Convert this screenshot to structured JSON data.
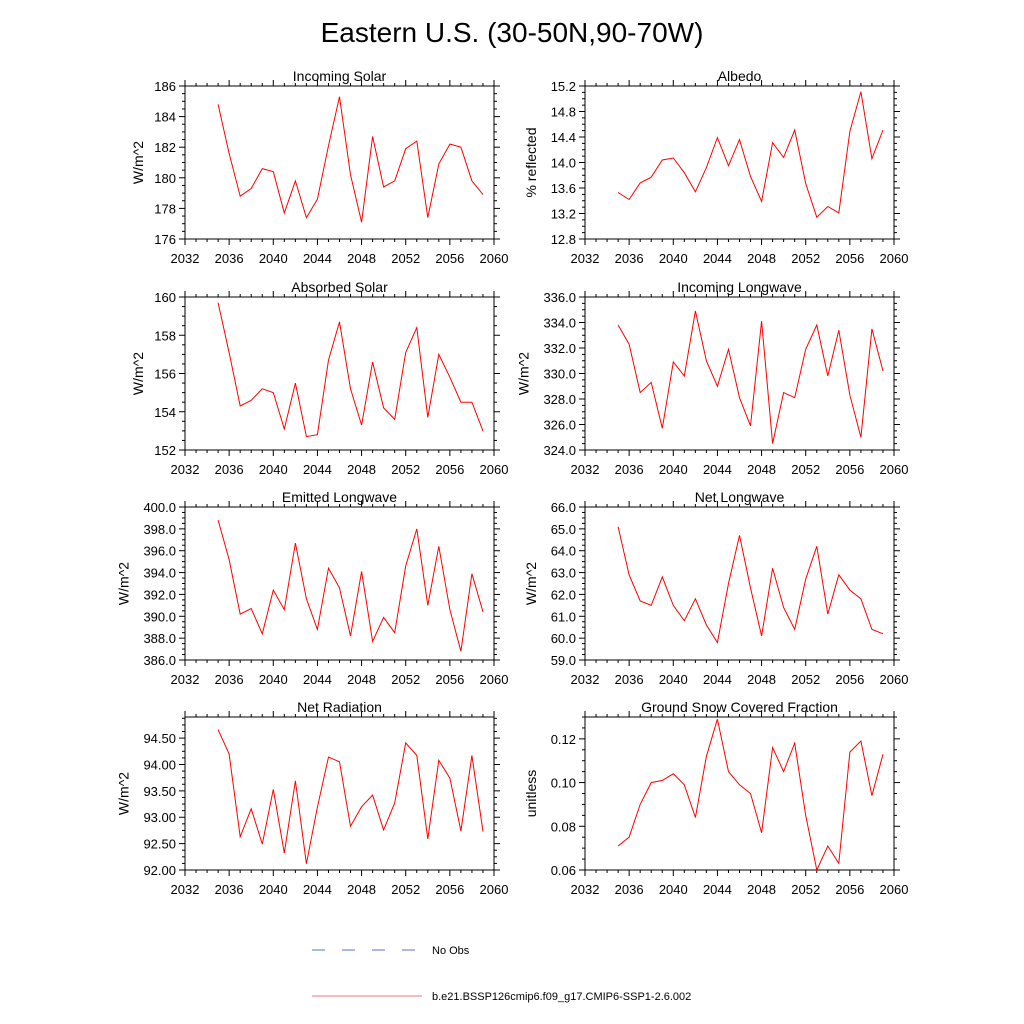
{
  "figure": {
    "title": "Eastern U.S. (30-50N,90-70W)",
    "legend": [
      {
        "label": "No Obs",
        "color": "#5b6fbf",
        "style": "dashed"
      },
      {
        "label": "b.e21.BSSP126cmip6.f09_g17.CMIP6-SSP1-2.6.002",
        "color": "#e8777a",
        "style": "solid"
      }
    ]
  },
  "chart_data": [
    {
      "type": "line",
      "title": "Incoming Solar",
      "ylabel": "W/m^2",
      "xlim": [
        2032,
        2060
      ],
      "ylim": [
        176,
        186
      ],
      "xticks": [
        "2032",
        "2036",
        "2040",
        "2044",
        "2048",
        "2052",
        "2056",
        "2060"
      ],
      "yticks": [
        "176",
        "178",
        "180",
        "182",
        "184",
        "186"
      ],
      "line_color": "#ff0000",
      "x": [
        2035,
        2036,
        2037,
        2038,
        2039,
        2040,
        2041,
        2042,
        2043,
        2044,
        2045,
        2046,
        2047,
        2048,
        2049,
        2050,
        2051,
        2052,
        2053,
        2054,
        2055,
        2056,
        2057,
        2058,
        2059
      ],
      "y": [
        184.8,
        181.6,
        178.8,
        179.3,
        180.6,
        180.4,
        177.7,
        179.8,
        177.4,
        178.6,
        182.1,
        185.3,
        180.2,
        177.1,
        182.7,
        179.4,
        179.8,
        181.9,
        182.4,
        177.4,
        180.9,
        182.2,
        182.0,
        179.8,
        178.9
      ]
    },
    {
      "type": "line",
      "title": "Albedo",
      "ylabel": "% reflected",
      "xlim": [
        2032,
        2060
      ],
      "ylim": [
        12.8,
        15.2
      ],
      "xticks": [
        "2032",
        "2036",
        "2040",
        "2044",
        "2048",
        "2052",
        "2056",
        "2060"
      ],
      "yticks": [
        "12.8",
        "13.2",
        "13.6",
        "14.0",
        "14.4",
        "14.8",
        "15.2"
      ],
      "line_color": "#ff0000",
      "x": [
        2035,
        2036,
        2037,
        2038,
        2039,
        2040,
        2041,
        2042,
        2043,
        2044,
        2045,
        2046,
        2047,
        2048,
        2049,
        2050,
        2051,
        2052,
        2053,
        2054,
        2055,
        2056,
        2057,
        2058,
        2059
      ],
      "y": [
        13.53,
        13.42,
        13.68,
        13.77,
        14.04,
        14.07,
        13.84,
        13.54,
        13.92,
        14.39,
        13.95,
        14.36,
        13.78,
        13.39,
        14.31,
        14.08,
        14.51,
        13.67,
        13.14,
        13.31,
        13.21,
        14.49,
        15.11,
        14.06,
        14.51
      ]
    },
    {
      "type": "line",
      "title": "Absorbed Solar",
      "ylabel": "W/m^2",
      "xlim": [
        2032,
        2060
      ],
      "ylim": [
        152,
        160
      ],
      "xticks": [
        "2032",
        "2036",
        "2040",
        "2044",
        "2048",
        "2052",
        "2056",
        "2060"
      ],
      "yticks": [
        "152",
        "154",
        "156",
        "158",
        "160"
      ],
      "line_color": "#ff0000",
      "x": [
        2035,
        2036,
        2037,
        2038,
        2039,
        2040,
        2041,
        2042,
        2043,
        2044,
        2045,
        2046,
        2047,
        2048,
        2049,
        2050,
        2051,
        2052,
        2053,
        2054,
        2055,
        2056,
        2057,
        2058,
        2059
      ],
      "y": [
        159.7,
        157.1,
        154.3,
        154.6,
        155.2,
        155.0,
        153.1,
        155.5,
        152.7,
        152.8,
        156.7,
        158.7,
        155.2,
        153.3,
        156.6,
        154.2,
        153.6,
        157.1,
        158.4,
        153.7,
        157.0,
        155.8,
        154.5,
        154.5,
        153.0
      ]
    },
    {
      "type": "line",
      "title": "Incoming Longwave",
      "ylabel": "W/m^2",
      "xlim": [
        2032,
        2060
      ],
      "ylim": [
        324,
        336
      ],
      "xticks": [
        "2032",
        "2036",
        "2040",
        "2044",
        "2048",
        "2052",
        "2056",
        "2060"
      ],
      "yticks": [
        "324.0",
        "326.0",
        "328.0",
        "330.0",
        "332.0",
        "334.0",
        "336.0"
      ],
      "line_color": "#ff0000",
      "x": [
        2035,
        2036,
        2037,
        2038,
        2039,
        2040,
        2041,
        2042,
        2043,
        2044,
        2045,
        2046,
        2047,
        2048,
        2049,
        2050,
        2051,
        2052,
        2053,
        2054,
        2055,
        2056,
        2057,
        2058,
        2059
      ],
      "y": [
        333.8,
        332.3,
        328.5,
        329.3,
        325.7,
        330.9,
        329.8,
        334.9,
        331.0,
        329.0,
        331.9,
        328.1,
        325.9,
        334.1,
        324.5,
        328.5,
        328.1,
        331.9,
        333.8,
        329.8,
        333.4,
        328.3,
        325.0,
        333.5,
        330.2
      ]
    },
    {
      "type": "line",
      "title": "Emitted Longwave",
      "ylabel": "W/m^2",
      "xlim": [
        2032,
        2060
      ],
      "ylim": [
        386,
        400
      ],
      "xticks": [
        "2032",
        "2036",
        "2040",
        "2044",
        "2048",
        "2052",
        "2056",
        "2060"
      ],
      "yticks": [
        "386.0",
        "388.0",
        "390.0",
        "392.0",
        "394.0",
        "396.0",
        "398.0",
        "400.0"
      ],
      "line_color": "#ff0000",
      "x": [
        2035,
        2036,
        2037,
        2038,
        2039,
        2040,
        2041,
        2042,
        2043,
        2044,
        2045,
        2046,
        2047,
        2048,
        2049,
        2050,
        2051,
        2052,
        2053,
        2054,
        2055,
        2056,
        2057,
        2058,
        2059
      ],
      "y": [
        398.8,
        395.2,
        390.2,
        390.7,
        388.4,
        392.4,
        390.6,
        396.7,
        391.6,
        388.8,
        394.4,
        392.6,
        388.2,
        394.1,
        387.7,
        389.9,
        388.5,
        394.6,
        398.0,
        391.0,
        396.4,
        390.6,
        386.8,
        393.9,
        390.4
      ]
    },
    {
      "type": "line",
      "title": "Net Longwave",
      "ylabel": "W/m^2",
      "xlim": [
        2032,
        2060
      ],
      "ylim": [
        59,
        66
      ],
      "xticks": [
        "2032",
        "2036",
        "2040",
        "2044",
        "2048",
        "2052",
        "2056",
        "2060"
      ],
      "yticks": [
        "59.0",
        "60.0",
        "61.0",
        "62.0",
        "63.0",
        "64.0",
        "65.0",
        "66.0"
      ],
      "line_color": "#ff0000",
      "x": [
        2035,
        2036,
        2037,
        2038,
        2039,
        2040,
        2041,
        2042,
        2043,
        2044,
        2045,
        2046,
        2047,
        2048,
        2049,
        2050,
        2051,
        2052,
        2053,
        2054,
        2055,
        2056,
        2057,
        2058,
        2059
      ],
      "y": [
        65.1,
        62.9,
        61.7,
        61.5,
        62.8,
        61.5,
        60.8,
        61.8,
        60.6,
        59.8,
        62.5,
        64.7,
        62.3,
        60.1,
        63.2,
        61.4,
        60.4,
        62.7,
        64.2,
        61.1,
        62.9,
        62.2,
        61.8,
        60.4,
        60.2
      ]
    },
    {
      "type": "line",
      "title": "Net Radiation",
      "ylabel": "W/m^2",
      "xlim": [
        2032,
        2060
      ],
      "ylim": [
        92,
        94.9
      ],
      "xticks": [
        "2032",
        "2036",
        "2040",
        "2044",
        "2048",
        "2052",
        "2056",
        "2060"
      ],
      "yticks": [
        "92.00",
        "92.50",
        "93.00",
        "93.50",
        "94.00",
        "94.50"
      ],
      "line_color": "#ff0000",
      "x": [
        2035,
        2036,
        2037,
        2038,
        2039,
        2040,
        2041,
        2042,
        2043,
        2044,
        2045,
        2046,
        2047,
        2048,
        2049,
        2050,
        2051,
        2052,
        2053,
        2054,
        2055,
        2056,
        2057,
        2058,
        2059
      ],
      "y": [
        94.66,
        94.2,
        92.63,
        93.16,
        92.49,
        93.53,
        92.32,
        93.69,
        92.12,
        93.19,
        94.14,
        94.05,
        92.83,
        93.2,
        93.42,
        92.76,
        93.27,
        94.41,
        94.17,
        92.59,
        94.08,
        93.74,
        92.74,
        94.17,
        92.73
      ]
    },
    {
      "type": "line",
      "title": "Ground Snow Covered Fraction",
      "ylabel": "unitless",
      "xlim": [
        2032,
        2060
      ],
      "ylim": [
        0.06,
        0.13
      ],
      "xticks": [
        "2032",
        "2036",
        "2040",
        "2044",
        "2048",
        "2052",
        "2056",
        "2060"
      ],
      "yticks": [
        "0.06",
        "0.08",
        "0.10",
        "0.12"
      ],
      "line_color": "#ff0000",
      "x": [
        2035,
        2036,
        2037,
        2038,
        2039,
        2040,
        2041,
        2042,
        2043,
        2044,
        2045,
        2046,
        2047,
        2048,
        2049,
        2050,
        2051,
        2052,
        2053,
        2054,
        2055,
        2056,
        2057,
        2058,
        2059
      ],
      "y": [
        0.071,
        0.075,
        0.09,
        0.1,
        0.101,
        0.104,
        0.099,
        0.084,
        0.112,
        0.129,
        0.105,
        0.099,
        0.095,
        0.077,
        0.116,
        0.105,
        0.118,
        0.085,
        0.06,
        0.071,
        0.063,
        0.114,
        0.119,
        0.094,
        0.113
      ]
    }
  ]
}
